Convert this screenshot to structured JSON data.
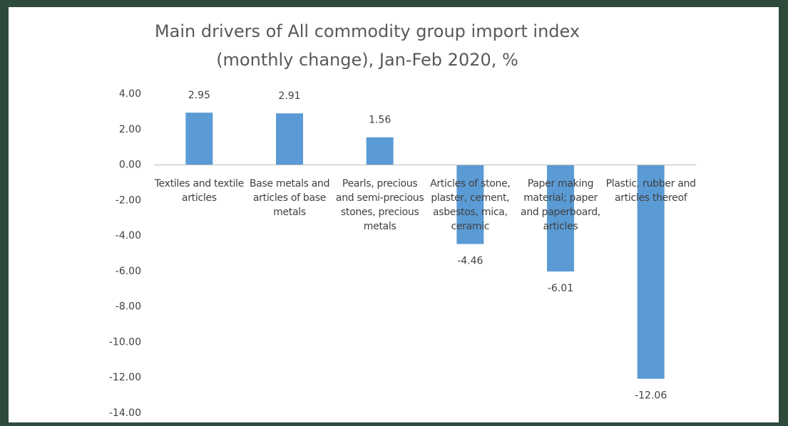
{
  "chart_data": {
    "type": "bar",
    "title": "Main drivers of All commodity group import index (monthly change), Jan-Feb 2020, %",
    "categories": [
      "Textiles and textile articles",
      "Base metals and articles of base metals",
      "Pearls, precious and semi-precious stones, precious metals",
      "Articles of stone, plaster, cement, asbestos, mica, ceramic",
      "Paper making material; paper and paperboard, articles",
      "Plastic, rubber and articles thereof"
    ],
    "values": [
      2.95,
      2.91,
      1.56,
      -4.46,
      -6.01,
      -12.06
    ],
    "color": "#5b9bd5",
    "ylim": [
      -14,
      4
    ],
    "yticks": [
      {
        "value": 4,
        "label": "4.00"
      },
      {
        "value": 2,
        "label": "2.00"
      },
      {
        "value": 0,
        "label": "0.00"
      },
      {
        "value": -2,
        "label": "-2.00"
      },
      {
        "value": -4,
        "label": "-4.00"
      },
      {
        "value": -6,
        "label": "-6.00"
      },
      {
        "value": -8,
        "label": "-8.00"
      },
      {
        "value": -10,
        "label": "-10.00"
      },
      {
        "value": -12,
        "label": "-12.00"
      },
      {
        "value": -14,
        "label": "-14.00"
      }
    ],
    "grid": false
  }
}
